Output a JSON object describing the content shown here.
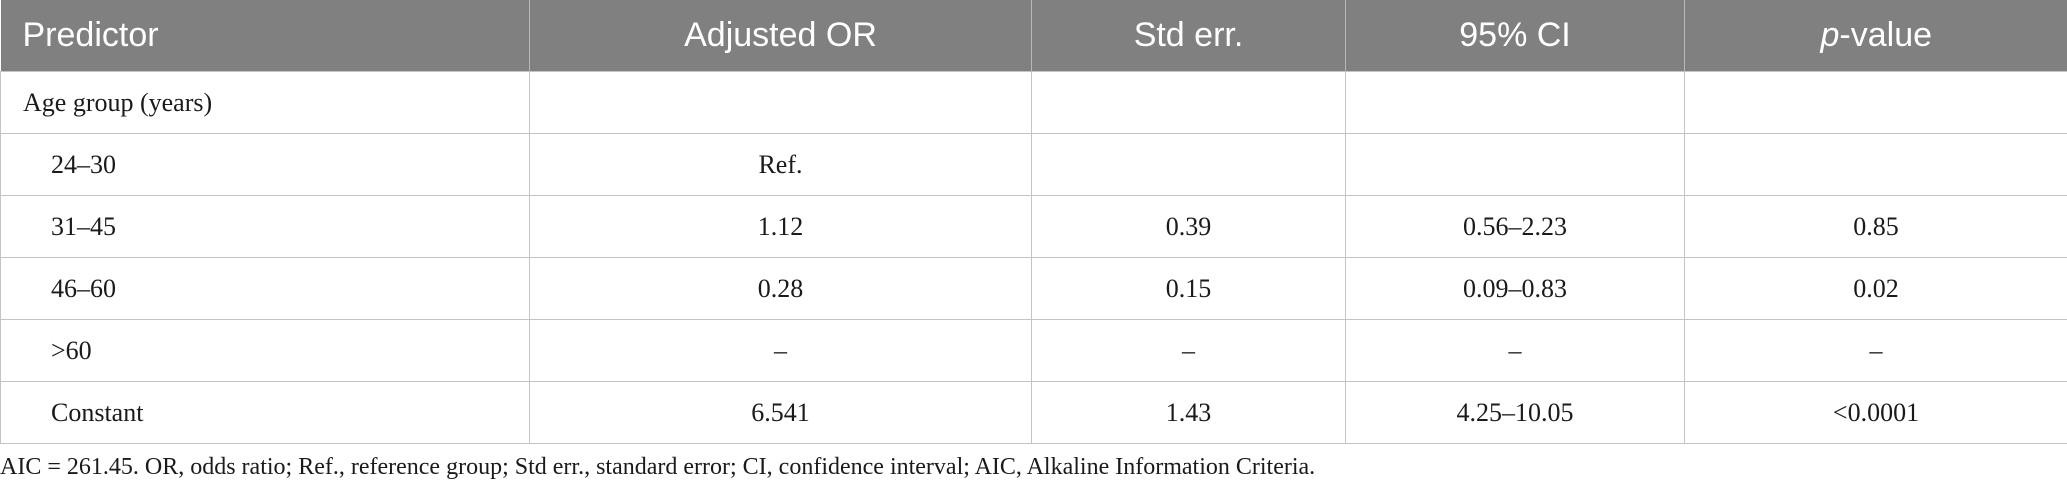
{
  "table": {
    "headers": {
      "predictor": "Predictor",
      "adjusted_or": "Adjusted OR",
      "std_err": "Std err.",
      "ci": "95% CI",
      "p_italic": "p",
      "p_rest": "-value"
    },
    "rows": [
      {
        "predictor": "Age group (years)",
        "or": "",
        "se": "",
        "ci": "",
        "p": ""
      },
      {
        "predictor": "24–30",
        "or": "Ref.",
        "se": "",
        "ci": "",
        "p": ""
      },
      {
        "predictor": "31–45",
        "or": "1.12",
        "se": "0.39",
        "ci": "0.56–2.23",
        "p": "0.85"
      },
      {
        "predictor": "46–60",
        "or": "0.28",
        "se": "0.15",
        "ci": "0.09–0.83",
        "p": "0.02"
      },
      {
        "predictor": ">60",
        "or": "–",
        "se": "–",
        "ci": "–",
        "p": "–"
      },
      {
        "predictor": "Constant",
        "or": "6.541",
        "se": "1.43",
        "ci": "4.25–10.05",
        "p": "<0.0001"
      }
    ]
  },
  "footnote": "AIC = 261.45. OR, odds ratio; Ref., reference group; Std err., standard error; CI, confidence interval; AIC, Alkaline Information Criteria."
}
